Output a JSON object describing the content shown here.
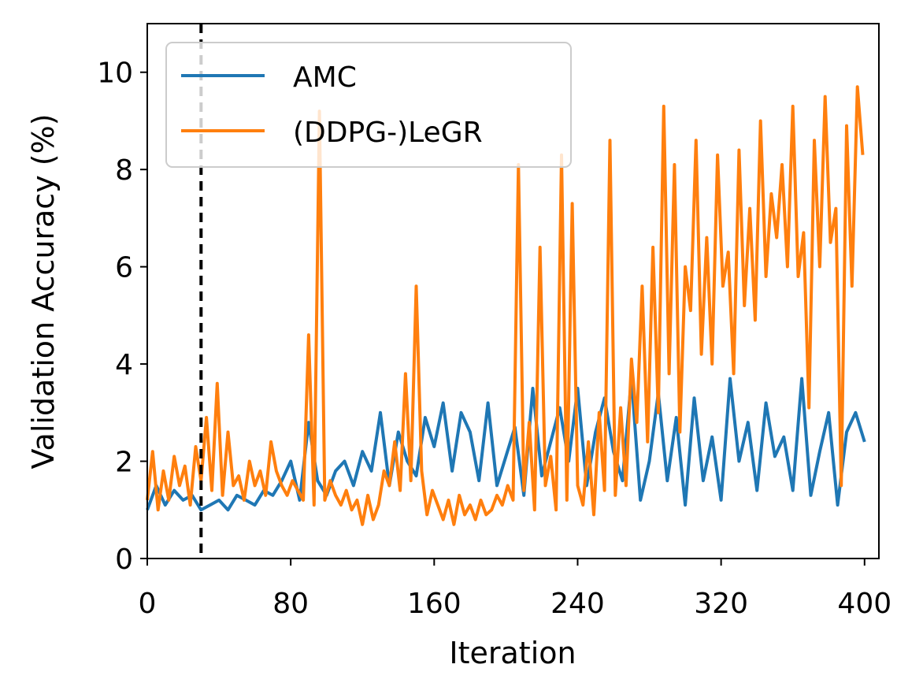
{
  "chart_data": {
    "type": "line",
    "title": "",
    "xlabel": "Iteration",
    "ylabel": "Validation Accuracy (%)",
    "xlim": [
      0,
      408
    ],
    "ylim": [
      0,
      11
    ],
    "xticks": [
      0,
      80,
      160,
      240,
      320,
      400
    ],
    "yticks": [
      0,
      2,
      4,
      6,
      8,
      10
    ],
    "grid": false,
    "legend_position": "top-left",
    "vline": {
      "x": 30,
      "style": "dashed",
      "color": "#000000"
    },
    "series": [
      {
        "name": "AMC",
        "color": "#1f77b4",
        "x": [
          0,
          5,
          10,
          15,
          20,
          25,
          30,
          35,
          40,
          45,
          50,
          55,
          60,
          65,
          70,
          75,
          80,
          85,
          90,
          95,
          100,
          105,
          110,
          115,
          120,
          125,
          130,
          135,
          140,
          145,
          150,
          155,
          160,
          165,
          170,
          175,
          180,
          185,
          190,
          195,
          200,
          205,
          210,
          215,
          220,
          225,
          230,
          235,
          240,
          245,
          250,
          255,
          260,
          265,
          270,
          275,
          280,
          285,
          290,
          295,
          300,
          305,
          310,
          315,
          320,
          325,
          330,
          335,
          340,
          345,
          350,
          355,
          360,
          365,
          370,
          375,
          380,
          385,
          390,
          395,
          400
        ],
        "values": [
          1.0,
          1.5,
          1.1,
          1.4,
          1.2,
          1.3,
          1.0,
          1.1,
          1.2,
          1.0,
          1.3,
          1.2,
          1.1,
          1.4,
          1.3,
          1.6,
          2.0,
          1.2,
          2.8,
          1.6,
          1.3,
          1.8,
          2.0,
          1.5,
          2.2,
          1.8,
          3.0,
          1.5,
          2.6,
          2.0,
          1.7,
          2.9,
          2.3,
          3.2,
          1.8,
          3.0,
          2.6,
          1.6,
          3.2,
          1.5,
          2.1,
          2.7,
          1.3,
          3.5,
          1.7,
          2.4,
          3.1,
          2.0,
          3.5,
          1.5,
          2.6,
          3.3,
          2.2,
          1.6,
          3.7,
          1.2,
          2.0,
          3.4,
          1.6,
          2.9,
          1.1,
          3.3,
          1.6,
          2.5,
          1.2,
          3.7,
          2.0,
          2.8,
          1.4,
          3.2,
          2.1,
          2.5,
          1.4,
          3.7,
          1.3,
          2.2,
          3.0,
          1.1,
          2.6,
          3.0,
          2.4
        ]
      },
      {
        "name": "(DDPG-)LeGR",
        "color": "#ff7f0e",
        "x": [
          0,
          3,
          6,
          9,
          12,
          15,
          18,
          21,
          24,
          27,
          30,
          33,
          36,
          39,
          42,
          45,
          48,
          51,
          54,
          57,
          60,
          63,
          66,
          69,
          72,
          75,
          78,
          81,
          84,
          87,
          90,
          93,
          96,
          99,
          102,
          105,
          108,
          111,
          114,
          117,
          120,
          123,
          126,
          129,
          132,
          135,
          138,
          141,
          144,
          147,
          150,
          153,
          156,
          159,
          162,
          165,
          168,
          171,
          174,
          177,
          180,
          183,
          186,
          189,
          192,
          195,
          198,
          201,
          204,
          207,
          210,
          213,
          216,
          219,
          222,
          225,
          228,
          231,
          234,
          237,
          240,
          243,
          246,
          249,
          252,
          255,
          258,
          261,
          264,
          267,
          270,
          273,
          276,
          279,
          282,
          285,
          288,
          291,
          294,
          297,
          300,
          303,
          306,
          309,
          312,
          315,
          318,
          321,
          324,
          327,
          330,
          333,
          336,
          339,
          342,
          345,
          348,
          351,
          354,
          357,
          360,
          363,
          366,
          369,
          372,
          375,
          378,
          381,
          384,
          387,
          390,
          393,
          396,
          399
        ],
        "values": [
          1.2,
          2.2,
          1.0,
          1.8,
          1.2,
          2.1,
          1.5,
          1.9,
          1.1,
          2.3,
          1.6,
          2.9,
          1.4,
          3.6,
          1.3,
          2.6,
          1.5,
          1.7,
          1.2,
          2.0,
          1.5,
          1.8,
          1.3,
          2.4,
          1.8,
          1.5,
          1.3,
          1.6,
          1.4,
          1.2,
          4.6,
          1.1,
          9.2,
          1.2,
          1.6,
          1.3,
          1.1,
          1.4,
          1.0,
          1.2,
          0.7,
          1.3,
          0.8,
          1.1,
          1.8,
          1.5,
          2.4,
          1.4,
          3.8,
          1.6,
          5.6,
          1.8,
          0.9,
          1.4,
          1.1,
          0.8,
          1.2,
          0.7,
          1.3,
          0.9,
          1.1,
          0.8,
          1.2,
          0.9,
          1.0,
          1.3,
          1.1,
          1.5,
          1.2,
          8.1,
          1.4,
          2.8,
          1.0,
          6.4,
          1.5,
          2.1,
          1.0,
          8.3,
          1.2,
          7.3,
          1.5,
          1.1,
          2.4,
          0.9,
          3.0,
          1.4,
          8.6,
          1.3,
          3.1,
          1.5,
          4.1,
          2.8,
          5.6,
          2.4,
          6.4,
          3.0,
          9.3,
          3.8,
          8.1,
          2.6,
          6.0,
          5.1,
          8.6,
          4.2,
          6.6,
          4.0,
          8.3,
          5.6,
          6.3,
          3.8,
          8.4,
          5.2,
          7.2,
          4.9,
          9.0,
          5.8,
          7.5,
          6.6,
          8.1,
          6.0,
          9.3,
          5.8,
          6.7,
          3.1,
          8.6,
          6.0,
          9.5,
          6.5,
          7.2,
          1.5,
          8.9,
          5.6,
          9.7,
          8.3
        ]
      }
    ]
  }
}
